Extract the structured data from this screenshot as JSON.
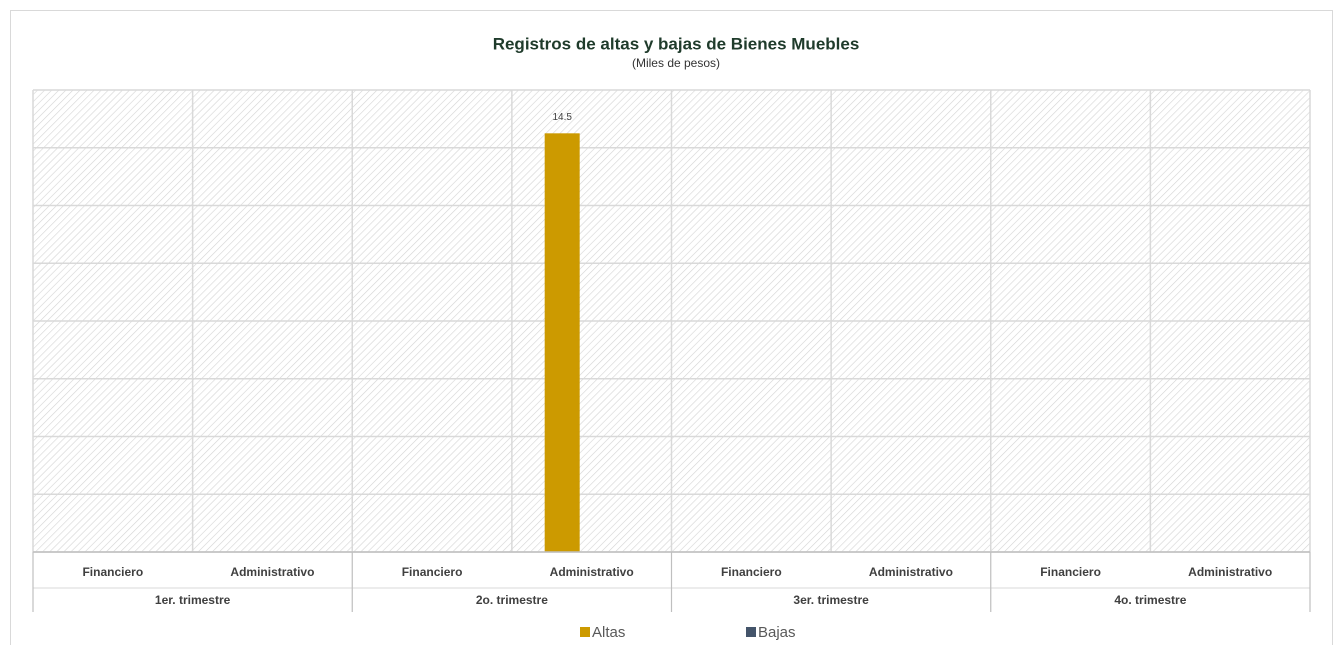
{
  "chart_data": {
    "type": "bar",
    "title": "Registros de altas y bajas de Bienes Muebles",
    "subtitle": "(Miles de pesos)",
    "categories": [
      "Financiero",
      "Administrativo",
      "Financiero",
      "Administrativo",
      "Financiero",
      "Administrativo",
      "Financiero",
      "Administrativo"
    ],
    "category_groups": [
      "1er. trimestre",
      "2o. trimestre",
      "3er. trimestre",
      "4o. trimestre"
    ],
    "series": [
      {
        "name": "Altas",
        "color": "#cc9a00",
        "values": [
          null,
          null,
          null,
          14.5,
          null,
          null,
          null,
          null
        ]
      },
      {
        "name": "Bajas",
        "color": "#44546a",
        "values": [
          null,
          null,
          null,
          null,
          null,
          null,
          null,
          null
        ]
      }
    ],
    "ylim": [
      0,
      16
    ],
    "yticks": [
      0,
      2,
      4,
      6,
      8,
      10,
      12,
      14,
      16
    ],
    "grid": true,
    "legend": "bottom"
  }
}
